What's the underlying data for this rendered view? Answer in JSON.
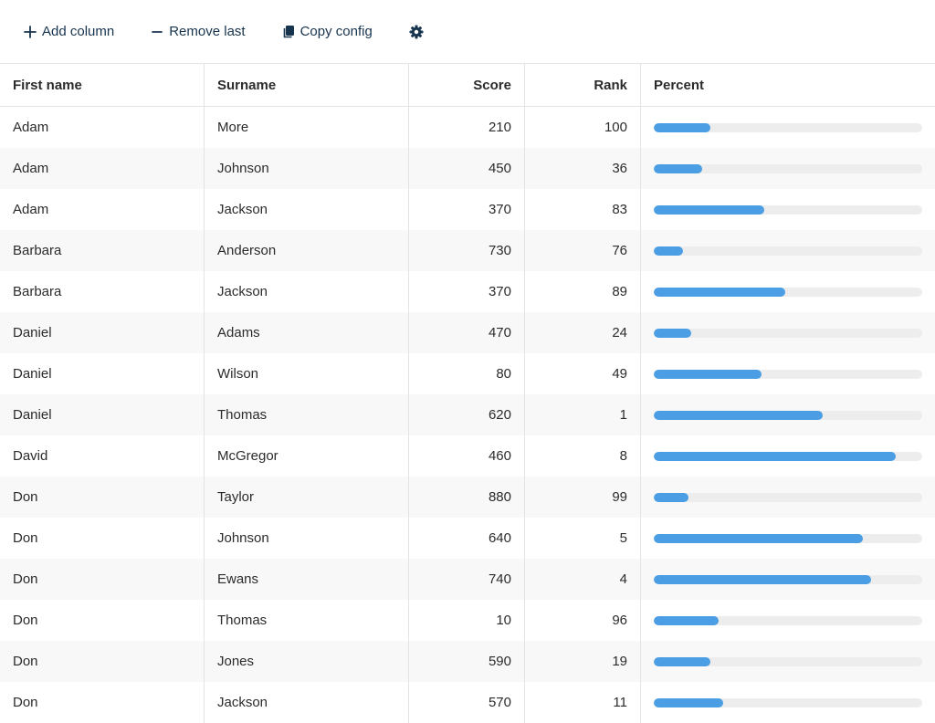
{
  "toolbar": {
    "add_label": "Add column",
    "remove_label": "Remove last",
    "copy_label": "Copy config"
  },
  "colors": {
    "accent": "#4b9ee3",
    "toolbar_text": "#17344f",
    "track": "#ededed"
  },
  "table": {
    "headers": [
      "First name",
      "Surname",
      "Score",
      "Rank",
      "Percent"
    ],
    "rows": [
      {
        "first": "Adam",
        "surname": "More",
        "score": "210",
        "rank": "100",
        "pct": 0.21
      },
      {
        "first": "Adam",
        "surname": "Johnson",
        "score": "450",
        "rank": "36",
        "pct": 0.18
      },
      {
        "first": "Adam",
        "surname": "Jackson",
        "score": "370",
        "rank": "83",
        "pct": 0.41
      },
      {
        "first": "Barbara",
        "surname": "Anderson",
        "score": "730",
        "rank": "76",
        "pct": 0.11
      },
      {
        "first": "Barbara",
        "surname": "Jackson",
        "score": "370",
        "rank": "89",
        "pct": 0.49
      },
      {
        "first": "Daniel",
        "surname": "Adams",
        "score": "470",
        "rank": "24",
        "pct": 0.14
      },
      {
        "first": "Daniel",
        "surname": "Wilson",
        "score": "80",
        "rank": "49",
        "pct": 0.4
      },
      {
        "first": "Daniel",
        "surname": "Thomas",
        "score": "620",
        "rank": "1",
        "pct": 0.63
      },
      {
        "first": "David",
        "surname": "McGregor",
        "score": "460",
        "rank": "8",
        "pct": 0.9
      },
      {
        "first": "Don",
        "surname": "Taylor",
        "score": "880",
        "rank": "99",
        "pct": 0.13
      },
      {
        "first": "Don",
        "surname": "Johnson",
        "score": "640",
        "rank": "5",
        "pct": 0.78
      },
      {
        "first": "Don",
        "surname": "Ewans",
        "score": "740",
        "rank": "4",
        "pct": 0.81
      },
      {
        "first": "Don",
        "surname": "Thomas",
        "score": "10",
        "rank": "96",
        "pct": 0.24
      },
      {
        "first": "Don",
        "surname": "Jones",
        "score": "590",
        "rank": "19",
        "pct": 0.21
      },
      {
        "first": "Don",
        "surname": "Jackson",
        "score": "570",
        "rank": "11",
        "pct": 0.26
      }
    ]
  }
}
